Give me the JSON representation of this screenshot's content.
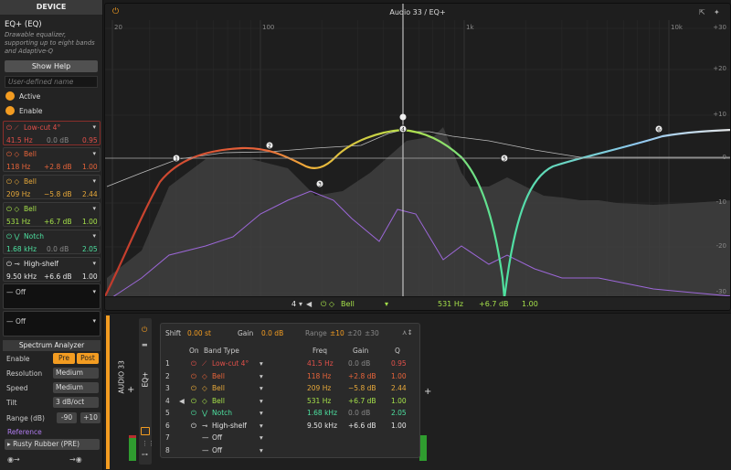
{
  "device_panel": {
    "title": "DEVICE",
    "plugin_name": "EQ+ (EQ)",
    "description": "Drawable equalizer, supporting up to eight bands and Adaptive-Q",
    "show_help": "Show Help",
    "name_placeholder": "User-defined name",
    "active": "Active",
    "enable": "Enable"
  },
  "bands": [
    {
      "type": "Low-cut 4°",
      "freq": "41.5 Hz",
      "gain": "0.0 dB",
      "q": "0.95",
      "color": "#e2504a"
    },
    {
      "type": "Bell",
      "freq": "118 Hz",
      "gain": "+2.8 dB",
      "q": "1.00",
      "color": "#e8643a"
    },
    {
      "type": "Bell",
      "freq": "209 Hz",
      "gain": "−5.8 dB",
      "q": "2.44",
      "color": "#e8a93a"
    },
    {
      "type": "Bell",
      "freq": "531 Hz",
      "gain": "+6.7 dB",
      "q": "1.00",
      "color": "#a5e04a"
    },
    {
      "type": "Notch",
      "freq": "1.68 kHz",
      "gain": "0.0 dB",
      "q": "2.05",
      "color": "#4de0a0"
    },
    {
      "type": "High-shelf",
      "freq": "9.50 kHz",
      "gain": "+6.6 dB",
      "q": "1.00",
      "color": "#e6e6e6"
    },
    {
      "type": "Off"
    },
    {
      "type": "Off"
    }
  ],
  "analyzer": {
    "title": "Spectrum Analyzer",
    "enable_label": "Enable",
    "pre": "Pre",
    "post": "Post",
    "resolution_label": "Resolution",
    "resolution": "Medium",
    "speed_label": "Speed",
    "speed": "Medium",
    "tilt_label": "Tilt",
    "tilt": "3 dB/oct",
    "range_label": "Range (dB)",
    "range_low": "-90",
    "range_high": "+10",
    "reference_label": "Reference",
    "reference": "Rusty Rubber (PRE)"
  },
  "graph": {
    "title": "Audio 33 / EQ+",
    "freq_labels": [
      "20",
      "100",
      "1k",
      "10k"
    ],
    "db_labels": [
      "+30",
      "+20",
      "+10",
      "0",
      "-10",
      "-20",
      "-30"
    ],
    "footer": {
      "band_index": "4",
      "band_type": "Bell",
      "freq": "531 Hz",
      "gain": "+6.7 dB",
      "q": "1.00"
    }
  },
  "track_label": "AUDIO 33",
  "eq_tab": "EQ+",
  "table": {
    "shift_label": "Shift",
    "shift": "0.00 st",
    "gain_label": "Gain",
    "gain": "0.0 dB",
    "range_label": "Range",
    "ranges": [
      "±10",
      "±20",
      "±30"
    ],
    "headers": {
      "on": "On",
      "band_type": "Band Type",
      "freq": "Freq",
      "gain": "Gain",
      "q": "Q"
    },
    "row_numbers": [
      "1",
      "2",
      "3",
      "4",
      "5",
      "6",
      "7",
      "8"
    ]
  },
  "colors": {
    "accent": "#f39c21",
    "lowcut": "#e2504a",
    "bell1": "#e8643a",
    "bell2": "#e8a93a",
    "bell3": "#a5e04a",
    "notch": "#4de0a0",
    "shelf": "#e6e6e6",
    "reference": "#b07cf0"
  }
}
